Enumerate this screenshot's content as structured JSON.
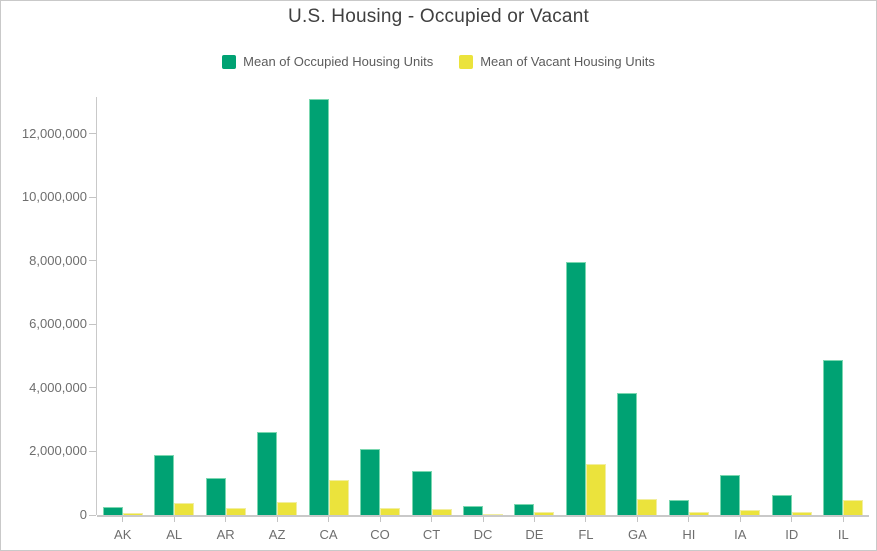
{
  "chart": {
    "title": "U.S. Housing - Occupied or Vacant"
  },
  "chart_data": {
    "type": "bar",
    "title": "U.S. Housing - Occupied or Vacant",
    "categories": [
      "AK",
      "AL",
      "AR",
      "AZ",
      "CA",
      "CO",
      "CT",
      "DC",
      "DE",
      "FL",
      "GA",
      "HI",
      "IA",
      "ID",
      "IL"
    ],
    "series": [
      {
        "name": "Mean of Occupied Housing Units",
        "color": "#00a273",
        "edge_color": "#7bd7b0",
        "values": [
          260000,
          1880000,
          1150000,
          2620000,
          13100000,
          2090000,
          1380000,
          280000,
          360000,
          7950000,
          3840000,
          460000,
          1260000,
          640000,
          4870000
        ]
      },
      {
        "name": "Mean of Vacant Housing Units",
        "color": "#ebe33c",
        "edge_color": "#f2ee9e",
        "values": [
          60000,
          380000,
          210000,
          400000,
          1100000,
          230000,
          180000,
          30000,
          100000,
          1600000,
          490000,
          80000,
          150000,
          90000,
          470000
        ]
      }
    ],
    "xlabel": "",
    "ylabel": "",
    "ylim": [
      0,
      13150000
    ],
    "yticks": [
      0,
      2000000,
      4000000,
      6000000,
      8000000,
      10000000,
      12000000
    ],
    "ytick_labels": [
      "0",
      "2,000,000",
      "4,000,000",
      "6,000,000",
      "8,000,000",
      "10,000,000",
      "12,000,000"
    ],
    "grid": false,
    "legend_position": "top"
  },
  "colors": {
    "occupied": "#00a273",
    "vacant": "#ebe33c",
    "axis_line": "#c9c9c9",
    "tick_mark": "#c4c4c4",
    "axis_label": "#6e6e6e",
    "title_text": "#404040",
    "legend_text": "#5c5c5c",
    "frame_border": "#c9c9c9",
    "background": "#ffffff"
  }
}
